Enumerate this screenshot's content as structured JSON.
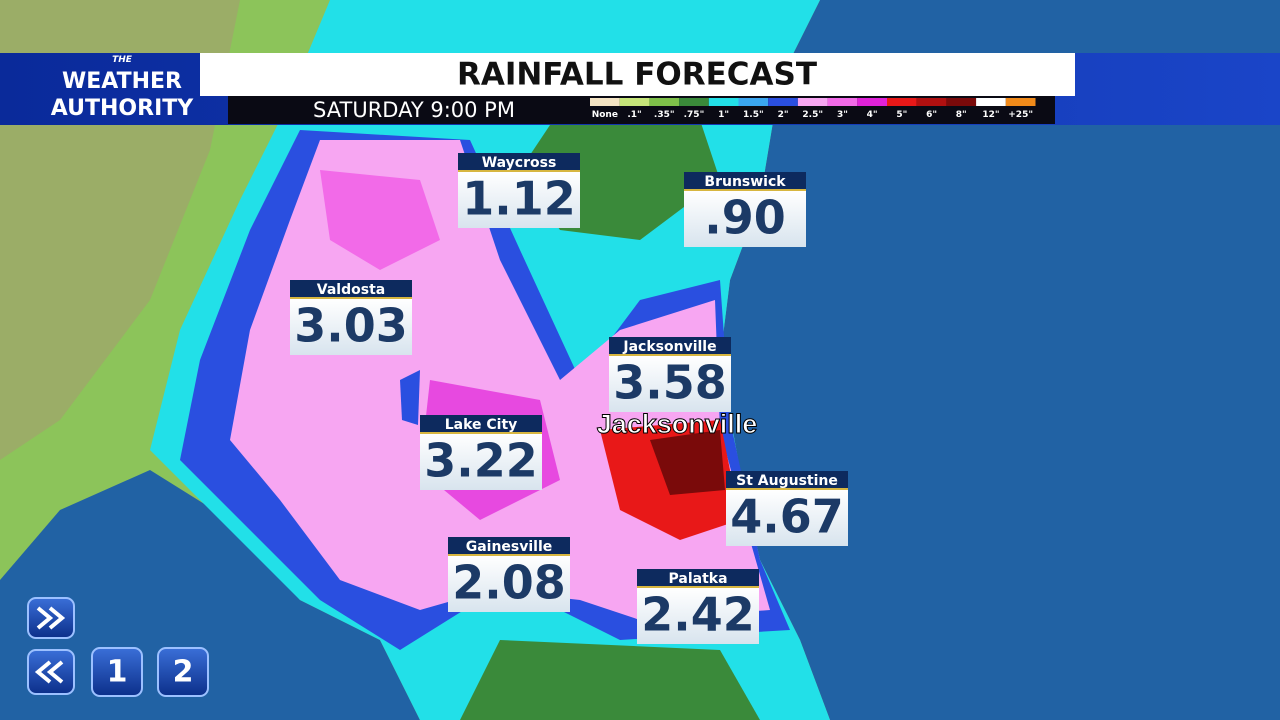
{
  "logo": {
    "line1": "THE",
    "line2": "WEATHER",
    "line3": "AUTHORITY"
  },
  "header": {
    "title": "RAINFALL FORECAST",
    "subtitle": "SATURDAY 9:00 PM"
  },
  "legend": [
    {
      "label": "None",
      "color": "#f3e3c3"
    },
    {
      "label": ".1\"",
      "color": "#c6e57a"
    },
    {
      "label": ".35\"",
      "color": "#7fc04a"
    },
    {
      "label": ".75\"",
      "color": "#3a8a3a"
    },
    {
      "label": "1\"",
      "color": "#22e0e8"
    },
    {
      "label": "1.5\"",
      "color": "#3aa6f0"
    },
    {
      "label": "2\"",
      "color": "#2a4fe0"
    },
    {
      "label": "2.5\"",
      "color": "#f7a6f2"
    },
    {
      "label": "3\"",
      "color": "#f26ae8"
    },
    {
      "label": "4\"",
      "color": "#e022d8"
    },
    {
      "label": "5\"",
      "color": "#e81818"
    },
    {
      "label": "6\"",
      "color": "#b01010"
    },
    {
      "label": "8\"",
      "color": "#7a0a0a"
    },
    {
      "label": "12\"",
      "color": "#ffffff"
    },
    {
      "label": "+25\"",
      "color": "#f08a1a"
    }
  ],
  "cities": [
    {
      "name": "Waycross",
      "value": "1.12"
    },
    {
      "name": "Brunswick",
      "value": ".90"
    },
    {
      "name": "Valdosta",
      "value": "3.03"
    },
    {
      "name": "Jacksonville",
      "value": "3.58"
    },
    {
      "name": "Lake City",
      "value": "3.22"
    },
    {
      "name": "St Augustine",
      "value": "4.67"
    },
    {
      "name": "Gainesville",
      "value": "2.08"
    },
    {
      "name": "Palatka",
      "value": "2.42"
    }
  ],
  "map_label": "Jacksonville",
  "controls": {
    "page1": "1",
    "page2": "2"
  }
}
